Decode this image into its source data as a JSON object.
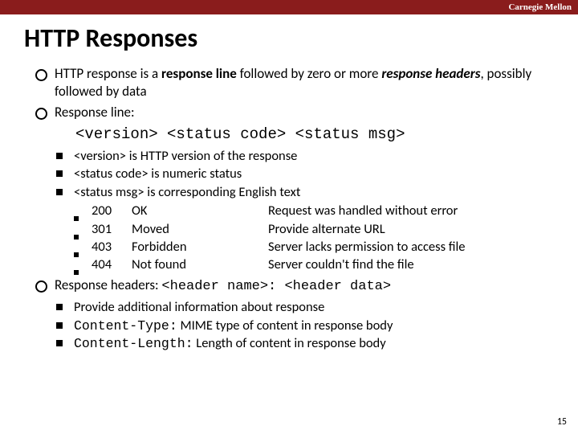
{
  "colors": {
    "topbar_bg": "#8a1c1c",
    "topbar_text": "#ffffff",
    "page_bg": "#ffffff",
    "text": "#000000"
  },
  "typography": {
    "title_fontsize": 32,
    "body_fontsize": 17,
    "sub_fontsize": 16.5,
    "mono_family": "Courier New",
    "body_family": "Calibri"
  },
  "topbar": {
    "label": "Carnegie Mellon"
  },
  "title": "HTTP Responses",
  "bullets": {
    "b1_pre": "HTTP response is a ",
    "b1_bold": "response line",
    "b1_mid": " followed by zero or more ",
    "b1_ital": "response headers",
    "b1_post": ", possibly followed by data",
    "b2": "Response line:",
    "b2_fmt": "<version> <status code> <status msg>",
    "b3_pre": "Response headers: ",
    "b3_mono": "<header name>: <header data>"
  },
  "sub1": {
    "s1": "<version> is HTTP version of the response",
    "s2": "<status code> is numeric status",
    "s3": "<status msg> is corresponding English text"
  },
  "status": {
    "rows": [
      {
        "code": "200",
        "name": "OK",
        "desc": "Request was handled without error"
      },
      {
        "code": "301",
        "name": "Moved",
        "desc": "Provide alternate URL"
      },
      {
        "code": "403",
        "name": "Forbidden",
        "desc": "Server lacks permission to access file"
      },
      {
        "code": "404",
        "name": "Not found",
        "desc": "Server couldn't find the file"
      }
    ]
  },
  "sub2": {
    "s1": "Provide additional information about response",
    "s2_mono": "Content-Type:",
    "s2_rest": "  MIME type of content in response body",
    "s3_mono": "Content-Length:",
    "s3_rest": "  Length of content in response body"
  },
  "pagenum": "15"
}
